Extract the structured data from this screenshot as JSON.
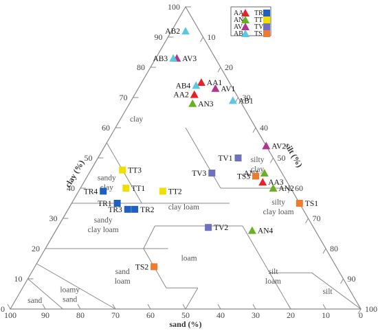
{
  "chart_data": {
    "type": "scatter",
    "ternary": true,
    "axes": {
      "sand": {
        "label": "sand (%)",
        "ticks": [
          "100",
          "90",
          "80",
          "70",
          "60",
          "50",
          "40",
          "30",
          "20",
          "10",
          "0"
        ]
      },
      "clay": {
        "label": "clay (%)",
        "ticks": [
          "0",
          "10",
          "20",
          "30",
          "40",
          "50",
          "60",
          "70",
          "80",
          "90",
          "100"
        ]
      },
      "silt": {
        "label": "silt (%)",
        "ticks": [
          "10",
          "20",
          "30",
          "40",
          "50",
          "60",
          "70",
          "80",
          "90",
          "100"
        ]
      }
    },
    "regions": [
      {
        "name": "clay",
        "lines": [
          "clay"
        ],
        "sand": 33,
        "clay": 62
      },
      {
        "name": "sandy clay",
        "lines": [
          "sandy",
          "clay"
        ],
        "sand": 52,
        "clay": 41
      },
      {
        "name": "silty clay",
        "lines": [
          "silty",
          "clay"
        ],
        "sand": 6,
        "clay": 47
      },
      {
        "name": "clay loam",
        "lines": [
          "clay loam"
        ],
        "sand": 34,
        "clay": 33
      },
      {
        "name": "sandy clay loam",
        "lines": [
          "sandy",
          "clay loam"
        ],
        "sand": 60,
        "clay": 27
      },
      {
        "name": "silty clay loam",
        "lines": [
          "silty",
          "clay loam"
        ],
        "sand": 7,
        "clay": 33
      },
      {
        "name": "loam",
        "lines": [
          "loam"
        ],
        "sand": 41,
        "clay": 16
      },
      {
        "name": "sand loam",
        "lines": [
          "sand",
          "loam"
        ],
        "sand": 63,
        "clay": 10
      },
      {
        "name": "silt loam",
        "lines": [
          "silt",
          "loam"
        ],
        "sand": 20,
        "clay": 10
      },
      {
        "name": "silt",
        "lines": [
          "silt"
        ],
        "sand": 7,
        "clay": 5
      },
      {
        "name": "loamy sand",
        "lines": [
          "loamy",
          "sand"
        ],
        "sand": 81,
        "clay": 4
      },
      {
        "name": "sand",
        "lines": [
          "sand"
        ],
        "sand": 92,
        "clay": 2
      }
    ],
    "legend": {
      "placement": "top-right",
      "entries": [
        {
          "label": "AA",
          "color": "#e8202a",
          "marker": "triangle"
        },
        {
          "label": "TR",
          "color": "#1f5fbf",
          "marker": "square"
        },
        {
          "label": "AN",
          "color": "#6ab023",
          "marker": "triangle"
        },
        {
          "label": "TT",
          "color": "#f0e000",
          "marker": "square"
        },
        {
          "label": "AV",
          "color": "#b0358c",
          "marker": "triangle"
        },
        {
          "label": "TV",
          "color": "#7070c0",
          "marker": "square"
        },
        {
          "label": "AB",
          "color": "#5bc8e0",
          "marker": "triangle"
        },
        {
          "label": "TS",
          "color": "#ee7b30",
          "marker": "square"
        }
      ]
    },
    "points": [
      {
        "label": "AB2",
        "group": "AB",
        "sand": 4,
        "clay": 92
      },
      {
        "label": "AV3",
        "group": "AV",
        "sand": 11,
        "clay": 83
      },
      {
        "label": "AB3",
        "group": "AB",
        "sand": 12,
        "clay": 83
      },
      {
        "label": "AA1",
        "group": "AA",
        "sand": 8,
        "clay": 75
      },
      {
        "label": "AB4",
        "group": "AB",
        "sand": 10,
        "clay": 74
      },
      {
        "label": "AV1",
        "group": "AV",
        "sand": 5,
        "clay": 73
      },
      {
        "label": "AA2",
        "group": "AA",
        "sand": 12,
        "clay": 71
      },
      {
        "label": "AN3",
        "group": "AN",
        "sand": 14,
        "clay": 68
      },
      {
        "label": "AB1",
        "group": "AB",
        "sand": 2,
        "clay": 69
      },
      {
        "label": "AV2",
        "group": "AV",
        "sand": 0,
        "clay": 54
      },
      {
        "label": "TV1",
        "group": "TV",
        "sand": 10,
        "clay": 50
      },
      {
        "label": "TV3",
        "group": "TV",
        "sand": 20,
        "clay": 45
      },
      {
        "label": "AN1",
        "group": "AN",
        "sand": 5,
        "clay": 45
      },
      {
        "label": "TS3",
        "group": "TS",
        "sand": 8,
        "clay": 44
      },
      {
        "label": "AA3",
        "group": "AA",
        "sand": 7,
        "clay": 42
      },
      {
        "label": "AN2",
        "group": "AN",
        "sand": 5,
        "clay": 40
      },
      {
        "label": "TT3",
        "group": "TT",
        "sand": 45,
        "clay": 46
      },
      {
        "label": "TT1",
        "group": "TT",
        "sand": 47,
        "clay": 40
      },
      {
        "label": "TT2",
        "group": "TT",
        "sand": 37,
        "clay": 39
      },
      {
        "label": "TR4",
        "group": "TR",
        "sand": 54,
        "clay": 39
      },
      {
        "label": "TR1",
        "group": "TR",
        "sand": 52,
        "clay": 35
      },
      {
        "label": "TR3",
        "group": "TR",
        "sand": 50,
        "clay": 33
      },
      {
        "label": "TR2",
        "group": "TR",
        "sand": 48,
        "clay": 33
      },
      {
        "label": "TV2",
        "group": "TV",
        "sand": 30,
        "clay": 27
      },
      {
        "label": "AN4",
        "group": "AN",
        "sand": 18,
        "clay": 26
      },
      {
        "label": "TS1",
        "group": "TS",
        "sand": 0,
        "clay": 35
      },
      {
        "label": "TS2",
        "group": "TS",
        "sand": 52,
        "clay": 14
      }
    ]
  }
}
